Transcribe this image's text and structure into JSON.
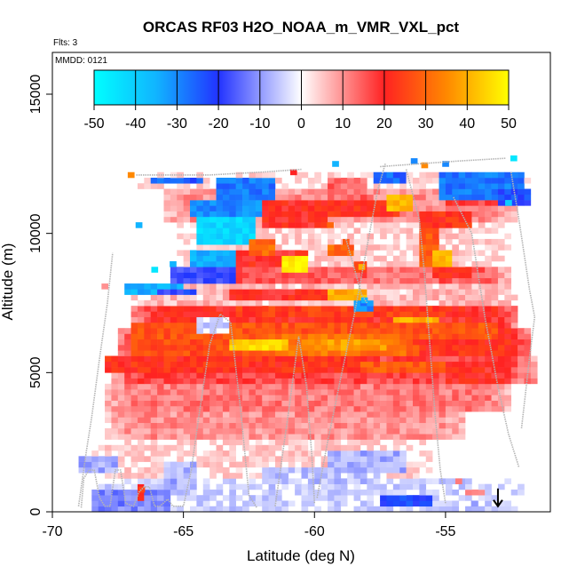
{
  "chart_data": {
    "type": "heatmap",
    "title": "ORCAS RF03 H2O_NOAA_m_VMR_VXL_pct",
    "flights_note": "Flts: 3",
    "date_note": "MMDD: 0121",
    "xlabel": "Latitude (deg N)",
    "ylabel": "Altitude (m)",
    "xlim": [
      -70,
      -51
    ],
    "ylim": [
      0,
      16500
    ],
    "xticks": [
      -70,
      -65,
      -60,
      -55
    ],
    "xtick_labels": [
      "-70",
      "-65",
      "-60",
      "-55"
    ],
    "yticks": [
      0,
      5000,
      10000,
      15000
    ],
    "ytick_labels": [
      "0",
      "5000",
      "10000",
      "15000"
    ],
    "colorbar": {
      "range": [
        -50,
        50
      ],
      "ticks": [
        -50,
        -40,
        -30,
        -20,
        -10,
        0,
        10,
        20,
        30,
        40,
        50
      ],
      "tick_labels": [
        "-50",
        "-40",
        "-30",
        "-20",
        "-10",
        "0",
        "10",
        "20",
        "30",
        "40",
        "50"
      ],
      "stops": [
        {
          "v": -50,
          "c": "#00ffff"
        },
        {
          "v": -35,
          "c": "#11b4ff"
        },
        {
          "v": -20,
          "c": "#2233ff"
        },
        {
          "v": 0,
          "c": "#ffffff"
        },
        {
          "v": 20,
          "c": "#ff2222"
        },
        {
          "v": 35,
          "c": "#ff8800"
        },
        {
          "v": 50,
          "c": "#ffff00"
        }
      ]
    },
    "bands": [
      {
        "x0": -68.6,
        "x1": -52.1,
        "a0": 0,
        "a1": 1200,
        "v": -4
      },
      {
        "x0": -68.4,
        "x1": -55.6,
        "a0": 1200,
        "a1": 2600,
        "v": 4
      },
      {
        "x0": -68.0,
        "x1": -54.2,
        "a0": 2600,
        "a1": 3600,
        "v": 10
      },
      {
        "x0": -68.0,
        "x1": -52.4,
        "a0": 3600,
        "a1": 4600,
        "v": 12
      },
      {
        "x0": -67.8,
        "x1": -51.6,
        "a0": 4600,
        "a1": 5600,
        "v": 17
      },
      {
        "x0": -67.4,
        "x1": -51.7,
        "a0": 5600,
        "a1": 6600,
        "v": 22
      },
      {
        "x0": -67.0,
        "x1": -52.2,
        "a0": 6600,
        "a1": 7400,
        "v": 20
      },
      {
        "x0": -67.0,
        "x1": -52.2,
        "a0": 7400,
        "a1": 8200,
        "v": 6
      },
      {
        "x0": -65.2,
        "x1": -52.6,
        "a0": 8200,
        "a1": 8800,
        "v": 15
      },
      {
        "x0": -65.2,
        "x1": -52.6,
        "a0": 8800,
        "a1": 10400,
        "v": 4
      },
      {
        "x0": -65.8,
        "x1": -52.2,
        "a0": 10400,
        "a1": 11600,
        "v": 10
      },
      {
        "x0": -66.8,
        "x1": -51.8,
        "a0": 11600,
        "a1": 12200,
        "v": 3
      }
    ],
    "patches": [
      {
        "x0": -68.5,
        "x1": -65.5,
        "a0": 0,
        "a1": 900,
        "v": -12
      },
      {
        "x0": -69.0,
        "x1": -67.6,
        "a0": 1500,
        "a1": 2000,
        "v": -8
      },
      {
        "x0": -65.8,
        "x1": -64.4,
        "a0": 900,
        "a1": 1800,
        "v": -8
      },
      {
        "x0": -59.5,
        "x1": -56.5,
        "a0": 1400,
        "a1": 2300,
        "v": -8
      },
      {
        "x0": -57.6,
        "x1": -55.4,
        "a0": 250,
        "a1": 700,
        "v": -22
      },
      {
        "x0": -66.8,
        "x1": -66.4,
        "a0": 500,
        "a1": 1000,
        "v": 24
      },
      {
        "x0": -62.0,
        "x1": -57.5,
        "a0": 1000,
        "a1": 1600,
        "v": -6
      },
      {
        "x0": -54.2,
        "x1": -53.6,
        "a0": 600,
        "a1": 900,
        "v": 8
      },
      {
        "x0": -68.0,
        "x1": -58.0,
        "a0": 5000,
        "a1": 5600,
        "v": 22
      },
      {
        "x0": -67.0,
        "x1": -56.0,
        "a0": 5600,
        "a1": 6200,
        "v": 26
      },
      {
        "x0": -67.0,
        "x1": -53.0,
        "a0": 6200,
        "a1": 6900,
        "v": 27
      },
      {
        "x0": -63.0,
        "x1": -55.0,
        "a0": 7000,
        "a1": 7400,
        "v": 24
      },
      {
        "x0": -62.0,
        "x1": -56.5,
        "a0": 5700,
        "a1": 6400,
        "v": 32
      },
      {
        "x0": -63.2,
        "x1": -61.0,
        "a0": 5800,
        "a1": 6200,
        "v": 45
      },
      {
        "x0": -60.5,
        "x1": -57.2,
        "a0": 5900,
        "a1": 6300,
        "v": 38
      },
      {
        "x0": -57.0,
        "x1": -55.3,
        "a0": 6800,
        "a1": 7000,
        "v": 40
      },
      {
        "x0": -58.2,
        "x1": -55.0,
        "a0": 5000,
        "a1": 5400,
        "v": 28
      },
      {
        "x0": -55.0,
        "x1": -52.4,
        "a0": 4700,
        "a1": 5400,
        "v": 20
      },
      {
        "x0": -63.2,
        "x1": -58.4,
        "a0": 7600,
        "a1": 8100,
        "v": 20
      },
      {
        "x0": -59.5,
        "x1": -58.0,
        "a0": 7700,
        "a1": 8100,
        "v": 40
      },
      {
        "x0": -67.3,
        "x1": -65.0,
        "a0": 7800,
        "a1": 8300,
        "v": -35
      },
      {
        "x0": -66.0,
        "x1": -64.5,
        "a0": 7800,
        "a1": 8100,
        "v": -20
      },
      {
        "x0": -65.5,
        "x1": -63.0,
        "a0": 8300,
        "a1": 8800,
        "v": -18
      },
      {
        "x0": -64.7,
        "x1": -62.5,
        "a0": 8900,
        "a1": 9500,
        "v": -35
      },
      {
        "x0": -63.0,
        "x1": -60.2,
        "a0": 8800,
        "a1": 9500,
        "v": 20
      },
      {
        "x0": -61.2,
        "x1": -60.3,
        "a0": 8700,
        "a1": 9200,
        "v": 48
      },
      {
        "x0": -64.6,
        "x1": -62.3,
        "a0": 9700,
        "a1": 10600,
        "v": -42
      },
      {
        "x0": -64.8,
        "x1": -61.7,
        "a0": 10600,
        "a1": 11300,
        "v": -30
      },
      {
        "x0": -63.8,
        "x1": -61.4,
        "a0": 11300,
        "a1": 12100,
        "v": -28
      },
      {
        "x0": -62.0,
        "x1": -59.4,
        "a0": 10200,
        "a1": 11300,
        "v": 20
      },
      {
        "x0": -60.0,
        "x1": -56.8,
        "a0": 10600,
        "a1": 11200,
        "v": 22
      },
      {
        "x0": -59.5,
        "x1": -58.0,
        "a0": 11200,
        "a1": 12000,
        "v": 14
      },
      {
        "x0": -57.2,
        "x1": -56.2,
        "a0": 10900,
        "a1": 11400,
        "v": 42
      },
      {
        "x0": -56.0,
        "x1": -55.2,
        "a0": 8800,
        "a1": 10600,
        "v": 28
      },
      {
        "x0": -55.4,
        "x1": -54.8,
        "a0": 8800,
        "a1": 9500,
        "v": 40
      },
      {
        "x0": -55.9,
        "x1": -54.0,
        "a0": 10300,
        "a1": 10800,
        "v": 22
      },
      {
        "x0": -55.9,
        "x1": -54.0,
        "a0": 8500,
        "a1": 8900,
        "v": 22
      },
      {
        "x0": -58.0,
        "x1": -55.5,
        "a0": 8300,
        "a1": 8800,
        "v": 12
      },
      {
        "x0": -55.2,
        "x1": -52.0,
        "a0": 11200,
        "a1": 12200,
        "v": -28
      },
      {
        "x0": -53.0,
        "x1": -51.8,
        "a0": 11000,
        "a1": 11600,
        "v": -22
      },
      {
        "x0": -55.0,
        "x1": -53.0,
        "a0": 11000,
        "a1": 11300,
        "v": 18
      },
      {
        "x0": -57.8,
        "x1": -56.5,
        "a0": 11900,
        "a1": 12200,
        "v": -26
      },
      {
        "x0": -66.2,
        "x1": -64.2,
        "a0": 11800,
        "a1": 12100,
        "v": -25
      },
      {
        "x0": -62.4,
        "x1": -61.6,
        "a0": 9300,
        "a1": 9800,
        "v": 30
      },
      {
        "x0": -59.5,
        "x1": -58.6,
        "a0": 9200,
        "a1": 9700,
        "v": 30
      },
      {
        "x0": -58.6,
        "x1": -58.0,
        "a0": 8600,
        "a1": 9100,
        "v": 22
      },
      {
        "x0": -58.4,
        "x1": -57.8,
        "a0": 7200,
        "a1": 7600,
        "v": -30
      },
      {
        "x0": -64.6,
        "x1": -63.2,
        "a0": 6500,
        "a1": 7000,
        "v": -4
      }
    ],
    "cells": [
      {
        "x": -67.0,
        "y": 12100,
        "v": 35
      },
      {
        "x": -68.0,
        "y": 8100,
        "v": 10
      },
      {
        "x": -66.7,
        "y": 10300,
        "v": -35
      },
      {
        "x": -59.2,
        "y": 12500,
        "v": -35
      },
      {
        "x": -56.2,
        "y": 12600,
        "v": -30
      },
      {
        "x": -60.8,
        "y": 12200,
        "v": 20
      },
      {
        "x": -55.0,
        "y": 12500,
        "v": -30
      },
      {
        "x": -52.4,
        "y": 12700,
        "v": -45
      },
      {
        "x": -55.8,
        "y": 12450,
        "v": 35
      },
      {
        "x": -52.6,
        "y": 11100,
        "v": -40
      },
      {
        "x": -66.1,
        "y": 8700,
        "v": -45
      },
      {
        "x": -65.4,
        "y": 8900,
        "v": -35
      },
      {
        "x": -58.2,
        "y": 8800,
        "v": 40
      },
      {
        "x": -59.4,
        "y": 10300,
        "v": 30
      },
      {
        "x": -58.8,
        "y": 9700,
        "v": 28
      },
      {
        "x": -58.1,
        "y": 7600,
        "v": -35
      },
      {
        "x": -66.6,
        "y": 800,
        "v": 25
      },
      {
        "x": -54.5,
        "y": 1100,
        "v": 12
      },
      {
        "x": -53.9,
        "y": 300,
        "v": -10
      }
    ],
    "flight_tracks": [
      [
        [
          -68.9,
          150
        ],
        [
          -68.8,
          1200
        ],
        [
          -68.6,
          1500
        ],
        [
          -68.4,
          1500
        ],
        [
          -68.2,
          500
        ],
        [
          -68.0,
          200
        ],
        [
          -67.8,
          200
        ],
        [
          -67.6,
          1500
        ],
        [
          -67.4,
          1500
        ],
        [
          -67.2,
          300
        ],
        [
          -66.9,
          200
        ],
        [
          -66.7,
          700
        ],
        [
          -66.5,
          900
        ],
        [
          -66.3,
          900
        ],
        [
          -66.1,
          200
        ],
        [
          -65.9,
          200
        ],
        [
          -65.6,
          450
        ],
        [
          -65.4,
          200
        ],
        [
          -65.0,
          200
        ],
        [
          -64.7,
          1500
        ],
        [
          -64.4,
          3500
        ],
        [
          -64.0,
          6000
        ],
        [
          -63.6,
          7100
        ],
        [
          -63.2,
          6800
        ],
        [
          -62.8,
          3500
        ],
        [
          -62.5,
          600
        ],
        [
          -62.2,
          150
        ]
      ],
      [
        [
          -69.0,
          200
        ],
        [
          -68.7,
          2200
        ],
        [
          -68.5,
          3400
        ],
        [
          -68.2,
          5500
        ],
        [
          -67.9,
          7500
        ],
        [
          -67.7,
          9300
        ]
      ],
      [
        [
          -61.5,
          200
        ],
        [
          -61.0,
          3500
        ],
        [
          -60.6,
          6300
        ],
        [
          -60.3,
          4500
        ],
        [
          -60.1,
          2000
        ],
        [
          -60.0,
          300
        ]
      ],
      [
        [
          -66.8,
          12100
        ],
        [
          -64.0,
          12100
        ],
        [
          -62.0,
          12200
        ],
        [
          -60.5,
          12300
        ]
      ],
      [
        [
          -59.9,
          500
        ],
        [
          -59.5,
          2500
        ],
        [
          -59.0,
          4800
        ],
        [
          -58.5,
          7000
        ],
        [
          -58.0,
          9500
        ],
        [
          -57.6,
          11500
        ],
        [
          -57.3,
          12500
        ]
      ],
      [
        [
          -58.8,
          9800
        ],
        [
          -58.5,
          8800
        ],
        [
          -58.2,
          7800
        ],
        [
          -58.0,
          7500
        ]
      ],
      [
        [
          -56.5,
          12300
        ],
        [
          -56.0,
          10500
        ],
        [
          -55.8,
          8500
        ],
        [
          -55.6,
          6000
        ],
        [
          -55.4,
          3500
        ],
        [
          -55.2,
          1500
        ],
        [
          -55.0,
          300
        ]
      ],
      [
        [
          -57.5,
          12400
        ],
        [
          -54.5,
          12600
        ],
        [
          -52.7,
          12700
        ]
      ],
      [
        [
          -54.7,
          11300
        ],
        [
          -54.0,
          10000
        ],
        [
          -53.5,
          7000
        ],
        [
          -53.0,
          4500
        ],
        [
          -52.6,
          2800
        ],
        [
          -52.2,
          1600
        ]
      ],
      [
        [
          -52.5,
          12200
        ],
        [
          -52.2,
          10500
        ],
        [
          -51.8,
          8000
        ],
        [
          -51.6,
          7000
        ],
        [
          -51.8,
          5500
        ],
        [
          -52.1,
          3000
        ]
      ]
    ],
    "marker": {
      "x": -53.0,
      "y": 200
    }
  }
}
